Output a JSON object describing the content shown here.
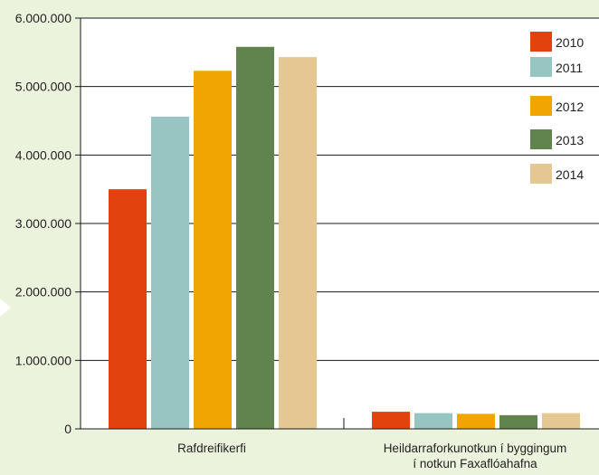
{
  "chart_data": {
    "type": "bar",
    "categories": [
      [
        "Rafdreifikerfi"
      ],
      [
        "Heildarraforkunotkun í byggingum",
        "í notkun Faxaflóahafna"
      ]
    ],
    "series": [
      {
        "name": "2010",
        "color": "#e2420d",
        "values": [
          3500000,
          250000
        ]
      },
      {
        "name": "2011",
        "color": "#97c5c2",
        "values": [
          4560000,
          230000
        ]
      },
      {
        "name": "2012",
        "color": "#f0a500",
        "values": [
          5230000,
          220000
        ]
      },
      {
        "name": "2013",
        "color": "#61834d",
        "values": [
          5580000,
          200000
        ]
      },
      {
        "name": "2014",
        "color": "#e4c791",
        "values": [
          5430000,
          230000
        ]
      }
    ],
    "ylim": [
      0,
      6000000
    ],
    "yticks": [
      {
        "value": 0,
        "label": "0"
      },
      {
        "value": 1000000,
        "label": "1.000.000"
      },
      {
        "value": 2000000,
        "label": "2.000.000"
      },
      {
        "value": 3000000,
        "label": "3.000.000"
      },
      {
        "value": 4000000,
        "label": "4.000.000"
      },
      {
        "value": 5000000,
        "label": "5.000.000"
      },
      {
        "value": 6000000,
        "label": "6.000.000"
      }
    ],
    "grid": true,
    "legend_position": "top-right",
    "title": "",
    "xlabel": "",
    "ylabel": ""
  }
}
